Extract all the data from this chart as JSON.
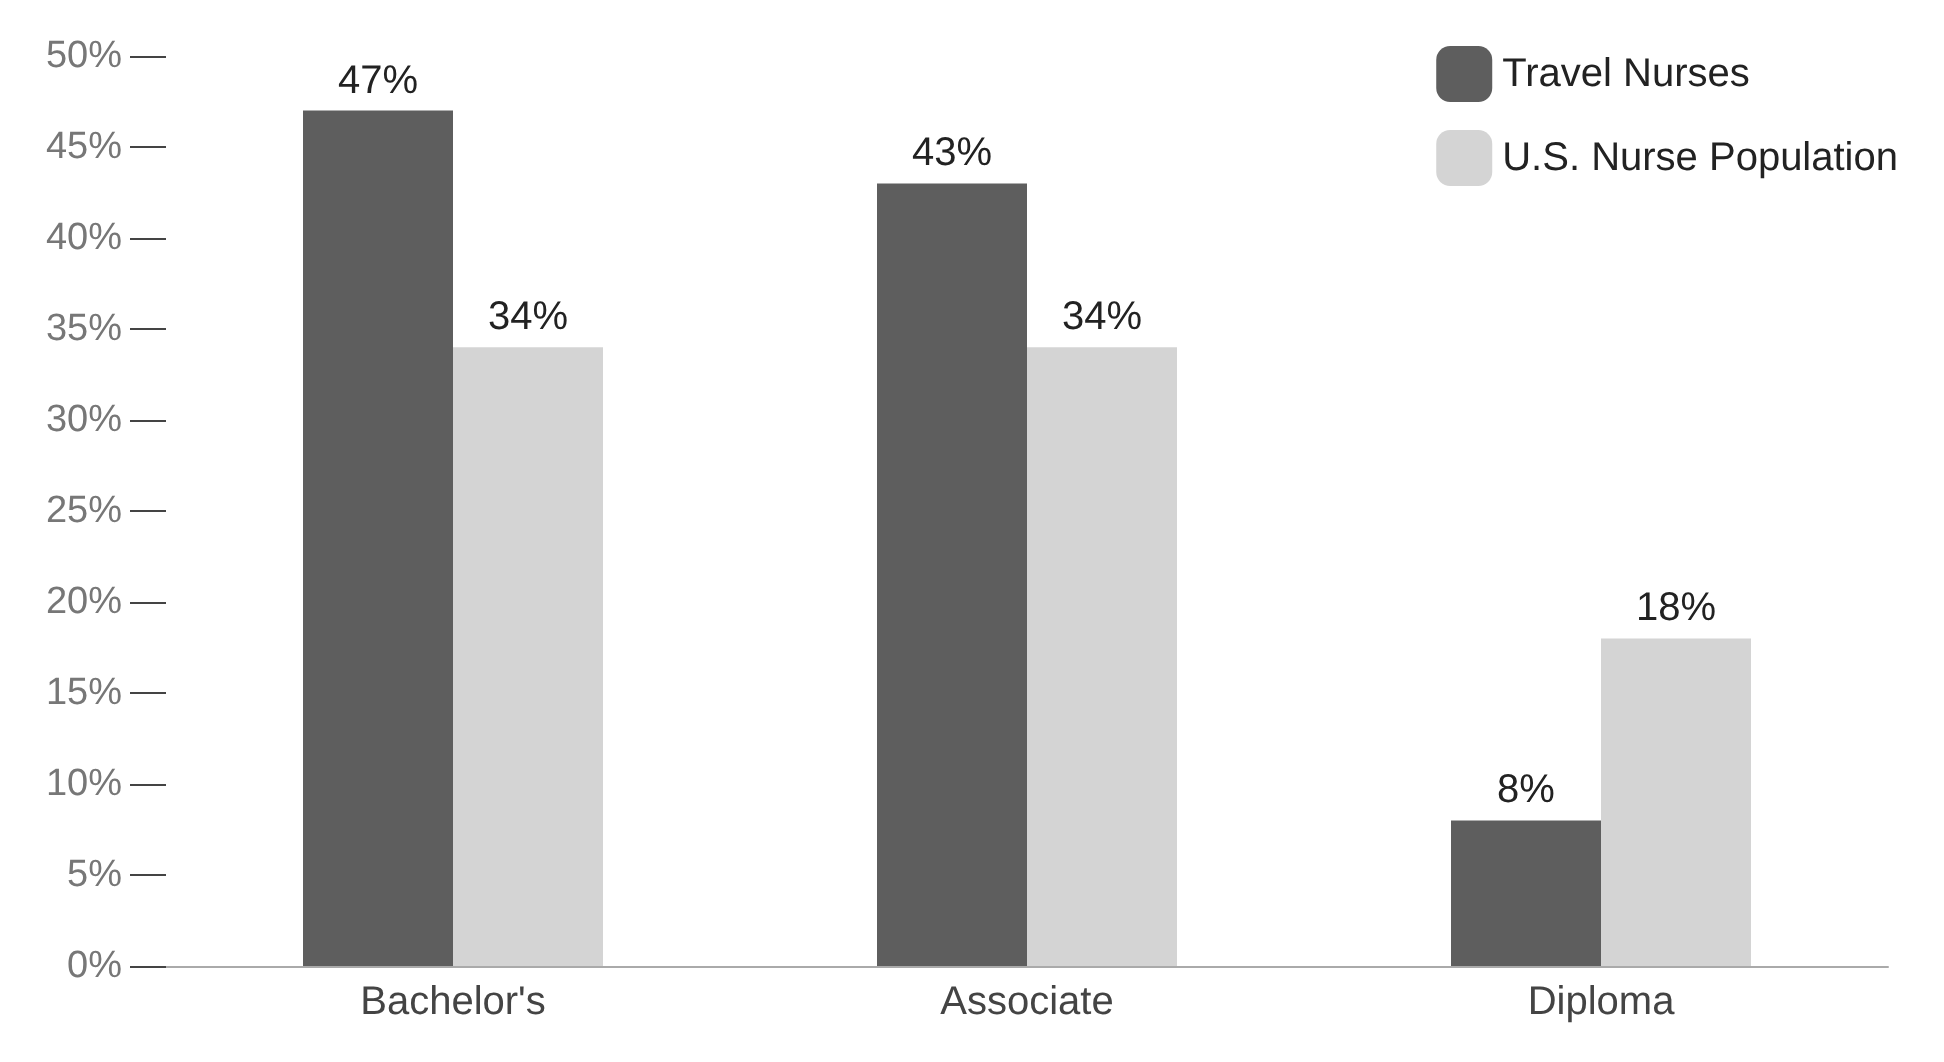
{
  "chart_data": {
    "type": "bar",
    "categories": [
      "Bachelor's",
      "Associate",
      "Diploma"
    ],
    "series": [
      {
        "name": "Travel Nurses",
        "color": "#5e5e5e",
        "values": [
          47,
          43,
          8
        ],
        "value_labels": [
          "47%",
          "43%",
          "8%"
        ]
      },
      {
        "name": "U.S. Nurse Population",
        "color": "#d4d4d4",
        "values": [
          34,
          34,
          18
        ],
        "value_labels": [
          "34%",
          "34%",
          "18%"
        ]
      }
    ],
    "ylim": [
      0,
      50
    ],
    "yticks": [
      {
        "value": 0,
        "label": "0%"
      },
      {
        "value": 5,
        "label": "5%"
      },
      {
        "value": 10,
        "label": "10%"
      },
      {
        "value": 15,
        "label": "15%"
      },
      {
        "value": 20,
        "label": "20%"
      },
      {
        "value": 25,
        "label": "25%"
      },
      {
        "value": 30,
        "label": "30%"
      },
      {
        "value": 35,
        "label": "35%"
      },
      {
        "value": 40,
        "label": "40%"
      },
      {
        "value": 45,
        "label": "45%"
      },
      {
        "value": 50,
        "label": "50%"
      }
    ],
    "legend": "top right"
  }
}
